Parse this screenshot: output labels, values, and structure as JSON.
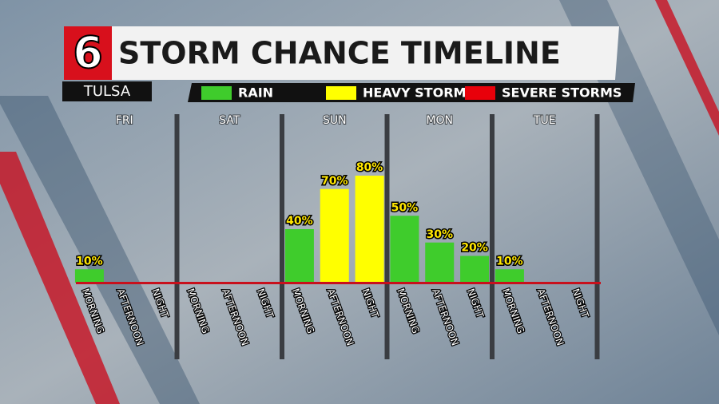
{
  "logo": "6",
  "location": "TULSA",
  "chart_data": {
    "type": "bar",
    "title": "STORM CHANCE TIMELINE",
    "days": [
      "FRI",
      "SAT",
      "SUN",
      "MON",
      "TUE"
    ],
    "categories": [
      "MORNING",
      "AFTERNOON",
      "NIGHT",
      "MORNING",
      "AFTERNOON",
      "NIGHT",
      "MORNING",
      "AFTERNOON",
      "NIGHT",
      "MORNING",
      "AFTERNOON",
      "NIGHT",
      "MORNING",
      "AFTERNOON",
      "NIGHT"
    ],
    "series": [
      {
        "name": "RAIN",
        "color": "#3fcc2c",
        "values": [
          10,
          null,
          null,
          null,
          null,
          null,
          40,
          null,
          null,
          50,
          30,
          20,
          10,
          null,
          null
        ],
        "value_labels": [
          "10%",
          null,
          null,
          null,
          null,
          null,
          "40%",
          null,
          null,
          "50%",
          "30%",
          "20%",
          "10%",
          null,
          null
        ]
      },
      {
        "name": "HEAVY STORMS",
        "color": "#ffff00",
        "values": [
          null,
          null,
          null,
          null,
          null,
          null,
          null,
          70,
          80,
          null,
          null,
          null,
          null,
          null,
          null
        ],
        "value_labels": [
          null,
          null,
          null,
          null,
          null,
          null,
          null,
          "70%",
          "80%",
          null,
          null,
          null,
          null,
          null,
          null
        ]
      },
      {
        "name": "SEVERE STORMS",
        "color": "#e8000a",
        "values": [
          null,
          null,
          null,
          null,
          null,
          null,
          null,
          null,
          null,
          null,
          null,
          null,
          null,
          null,
          null
        ],
        "value_labels": [
          null,
          null,
          null,
          null,
          null,
          null,
          null,
          null,
          null,
          null,
          null,
          null,
          null,
          null,
          null
        ]
      }
    ]
  }
}
